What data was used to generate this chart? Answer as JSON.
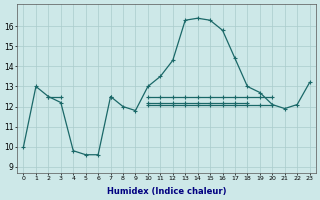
{
  "xlabel": "Humidex (Indice chaleur)",
  "background_color": "#cde8e8",
  "grid_color": "#aacccc",
  "line_color": "#1a6868",
  "xlim": [
    -0.5,
    23.5
  ],
  "ylim": [
    9,
    17
  ],
  "yticks": [
    9,
    10,
    11,
    12,
    13,
    14,
    15,
    16
  ],
  "xtick_labels": [
    "0",
    "1",
    "2",
    "3",
    "4",
    "5",
    "6",
    "7",
    "8",
    "9",
    "10",
    "11",
    "12",
    "13",
    "14",
    "15",
    "16",
    "17",
    "18",
    "19",
    "20",
    "21",
    "22",
    "23"
  ],
  "series": [
    [
      10,
      13,
      12.5,
      12.2,
      9.8,
      9.6,
      9.6,
      12.5,
      12.0,
      11.8,
      13.0,
      13.5,
      14.3,
      16.3,
      16.4,
      16.3,
      15.8,
      14.4,
      13.0,
      12.7,
      12.1,
      11.9,
      12.1,
      13.2
    ],
    [
      null,
      null,
      12.5,
      12.5,
      null,
      null,
      null,
      12.5,
      null,
      null,
      12.5,
      12.5,
      12.5,
      12.5,
      12.5,
      12.5,
      12.5,
      12.5,
      12.5,
      12.5,
      12.5,
      null,
      null,
      null
    ],
    [
      null,
      null,
      null,
      null,
      null,
      null,
      null,
      null,
      null,
      null,
      12.2,
      12.2,
      12.2,
      12.2,
      12.2,
      12.2,
      12.2,
      12.2,
      12.2,
      null,
      null,
      null,
      null,
      null
    ],
    [
      null,
      null,
      null,
      null,
      null,
      null,
      null,
      null,
      null,
      null,
      12.1,
      12.1,
      12.1,
      12.1,
      12.1,
      12.1,
      12.1,
      12.1,
      12.1,
      12.1,
      12.1,
      null,
      null,
      null
    ]
  ]
}
